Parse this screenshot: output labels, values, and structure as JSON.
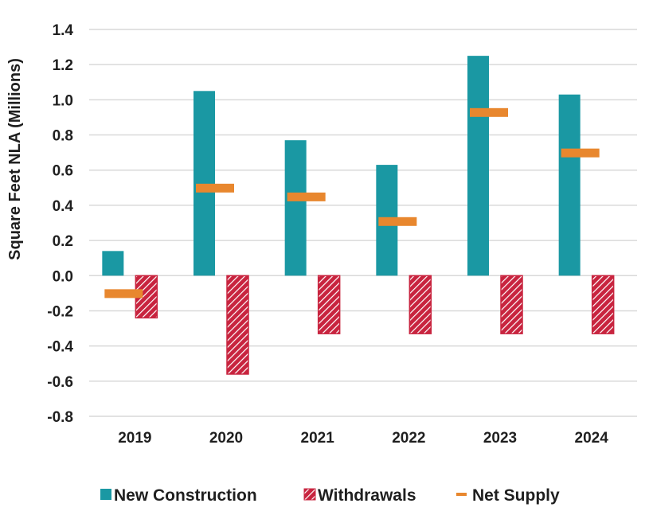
{
  "chart_data": {
    "type": "bar",
    "categories": [
      "2019",
      "2020",
      "2021",
      "2022",
      "2023",
      "2024"
    ],
    "series": [
      {
        "name": "New Construction",
        "kind": "bar",
        "color": "#1a98a3",
        "values": [
          0.14,
          1.05,
          0.77,
          0.63,
          1.25,
          1.03
        ]
      },
      {
        "name": "Withdrawals",
        "kind": "bar-hatched",
        "color": "#c8243f",
        "values": [
          -0.24,
          -0.56,
          -0.33,
          -0.33,
          -0.33,
          -0.33
        ]
      },
      {
        "name": "Net Supply",
        "kind": "marker",
        "color": "#e8872e",
        "values": [
          -0.1,
          0.5,
          0.45,
          0.31,
          0.93,
          0.7
        ]
      }
    ],
    "title": "",
    "xlabel": "",
    "ylabel": "Square Feet NLA (Millions)",
    "ylim": [
      -0.8,
      1.4
    ],
    "yticks": [
      "1.4",
      "1.2",
      "1.0",
      "0.8",
      "0.6",
      "0.4",
      "0.2",
      "0.0",
      "-0.2",
      "-0.4",
      "-0.6",
      "-0.8"
    ],
    "grid": true,
    "legend": "bottom"
  }
}
